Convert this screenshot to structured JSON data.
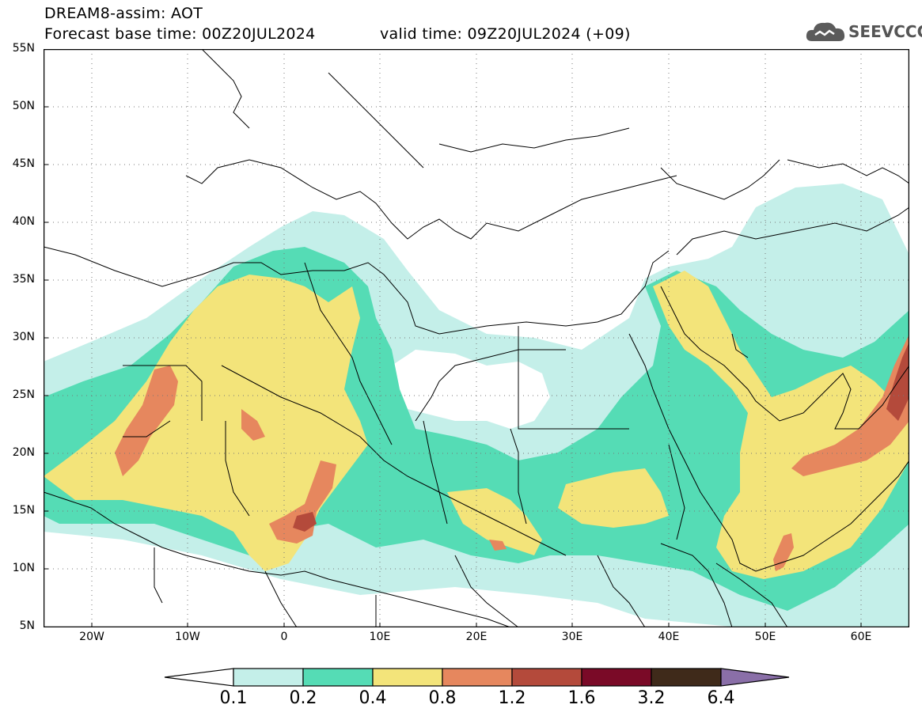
{
  "header": {
    "title": "DREAM8-assim: AOT",
    "base_time": "Forecast base time: 00Z20JUL2024",
    "valid_time": "valid time: 09Z20JUL2024 (+09)"
  },
  "logo": {
    "text": "SEEVCCC",
    "icon": "cloud-icon",
    "color": "#555555"
  },
  "map": {
    "region": "North Africa, Middle East and Arabian Peninsula",
    "lon_range": [
      -25,
      65
    ],
    "lat_range": [
      5,
      55
    ],
    "lat_labels": [
      "55N",
      "50N",
      "45N",
      "40N",
      "35N",
      "30N",
      "25N",
      "20N",
      "15N",
      "10N",
      "5N"
    ],
    "lon_labels": [
      "20W",
      "10W",
      "0",
      "10E",
      "20E",
      "30E",
      "40E",
      "50E",
      "60E"
    ],
    "grid": "dotted"
  },
  "colorbar": {
    "labels": [
      "0.1",
      "0.2",
      "0.4",
      "0.8",
      "1.2",
      "1.6",
      "3.2",
      "6.4"
    ],
    "colors": [
      "#ffffff",
      "#c4efe9",
      "#55dcb5",
      "#f3e47a",
      "#e6875e",
      "#b44a3b",
      "#7a0a27",
      "#3f2a1a",
      "#8a6fa8"
    ]
  }
}
